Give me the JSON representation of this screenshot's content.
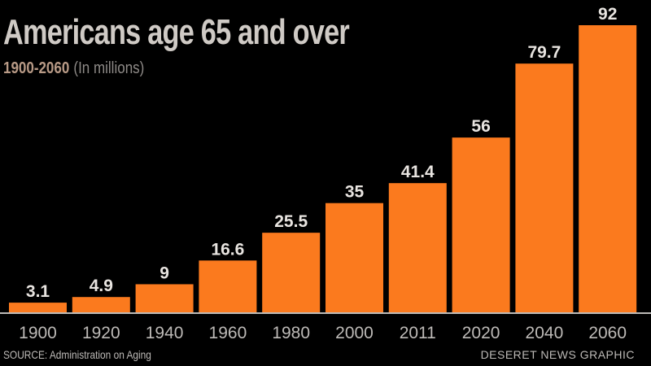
{
  "header": {
    "title": "Americans age 65 and over",
    "range": "1900-2060",
    "unit": "(In millions)"
  },
  "footer": {
    "source": "SOURCE: Administration on Aging",
    "credit": "DESERET NEWS GRAPHIC"
  },
  "colors": {
    "bar": "#fb7a1e",
    "background": "#000000",
    "label": "#e8e4e0",
    "axis": "#bdbab7"
  },
  "chart_data": {
    "type": "bar",
    "title": "Americans age 65 and over",
    "subtitle": "1900-2060 (In millions)",
    "categories": [
      "1900",
      "1920",
      "1940",
      "1960",
      "1980",
      "2000",
      "2011",
      "2020",
      "2040",
      "2060"
    ],
    "values": [
      3.1,
      4.9,
      9,
      16.6,
      25.5,
      35,
      41.4,
      56,
      79.7,
      92
    ],
    "value_labels": [
      "3.1",
      "4.9",
      "9",
      "16.6",
      "25.5",
      "35",
      "41.4",
      "56",
      "79.7",
      "92"
    ],
    "xlabel": "",
    "ylabel": "",
    "ylim": [
      0,
      92
    ],
    "grid": false,
    "legend": "none"
  }
}
